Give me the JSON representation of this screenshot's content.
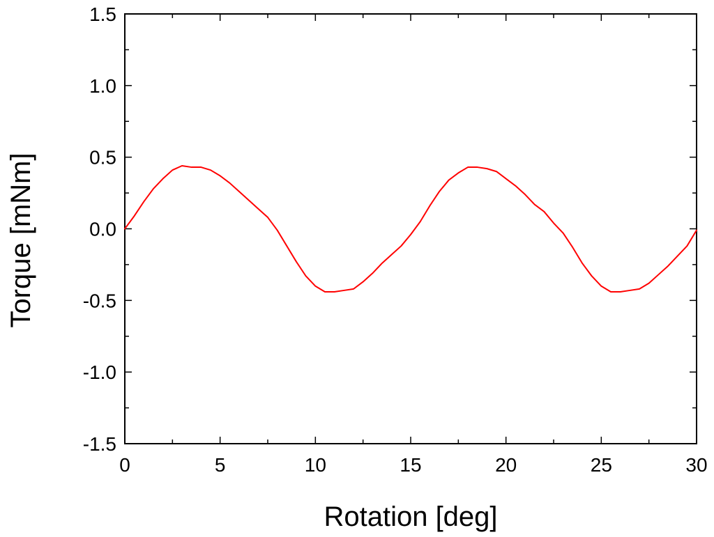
{
  "chart_data": {
    "type": "line",
    "title": "",
    "xlabel": "Rotation [deg]",
    "ylabel": "Torque [mNm]",
    "xlim": [
      0,
      30
    ],
    "ylim": [
      -1.5,
      1.5
    ],
    "x_ticks": [
      0,
      5,
      10,
      15,
      20,
      25,
      30
    ],
    "x_tick_labels": [
      "0",
      "5",
      "10",
      "15",
      "20",
      "25",
      "30"
    ],
    "y_ticks": [
      -1.5,
      -1.0,
      -0.5,
      0.0,
      0.5,
      1.0,
      1.5
    ],
    "y_tick_labels": [
      "-1.5",
      "-1.0",
      "-0.5",
      "0.0",
      "0.5",
      "1.0",
      "1.5"
    ],
    "grid": false,
    "legend": "none",
    "series": [
      {
        "color": "#ff0000",
        "x": [
          0,
          0.5,
          1,
          1.5,
          2,
          2.5,
          3,
          3.5,
          4,
          4.5,
          5,
          5.5,
          6,
          6.5,
          7,
          7.5,
          8,
          8.5,
          9,
          9.5,
          10,
          10.5,
          11,
          11.5,
          12,
          12.5,
          13,
          13.5,
          14,
          14.5,
          15,
          15.5,
          16,
          16.5,
          17,
          17.5,
          18,
          18.5,
          19,
          19.5,
          20,
          20.5,
          21,
          21.5,
          22,
          22.5,
          23,
          23.5,
          24,
          24.5,
          25,
          25.5,
          26,
          26.5,
          27,
          27.5,
          28,
          28.5,
          29,
          29.5,
          30
        ],
        "y": [
          0.0,
          0.09,
          0.19,
          0.28,
          0.35,
          0.41,
          0.44,
          0.43,
          0.43,
          0.41,
          0.37,
          0.32,
          0.26,
          0.2,
          0.14,
          0.08,
          -0.01,
          -0.12,
          -0.23,
          -0.33,
          -0.4,
          -0.44,
          -0.44,
          -0.43,
          -0.42,
          -0.37,
          -0.31,
          -0.24,
          -0.18,
          -0.12,
          -0.04,
          0.05,
          0.16,
          0.26,
          0.34,
          0.39,
          0.43,
          0.43,
          0.42,
          0.4,
          0.35,
          0.3,
          0.24,
          0.17,
          0.12,
          0.04,
          -0.03,
          -0.13,
          -0.24,
          -0.33,
          -0.4,
          -0.44,
          -0.44,
          -0.43,
          -0.42,
          -0.38,
          -0.32,
          -0.26,
          -0.19,
          -0.12,
          -0.01
        ]
      }
    ]
  }
}
